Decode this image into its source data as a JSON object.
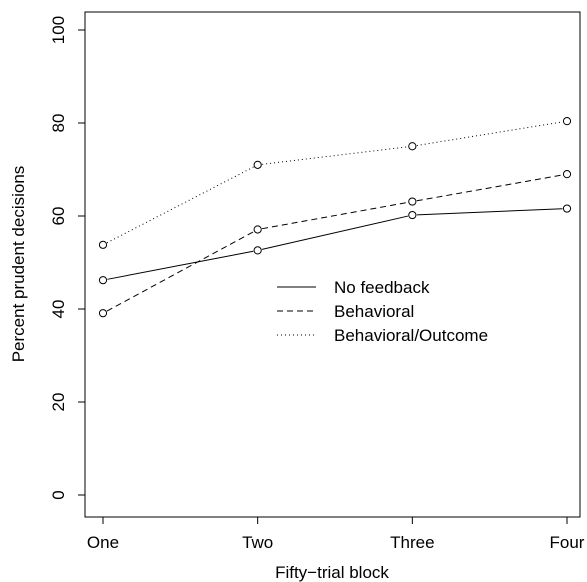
{
  "chart_data": {
    "type": "line",
    "xlabel": "Fifty−trial block",
    "ylabel": "Percent prudent decisions",
    "categories": [
      "One",
      "Two",
      "Three",
      "Four"
    ],
    "ylim": [
      0,
      100
    ],
    "yticks": [
      0,
      20,
      40,
      60,
      80,
      100
    ],
    "grid": false,
    "legend": "center-right",
    "series": [
      {
        "name": "No feedback",
        "line_style": "solid",
        "values": [
          46.2,
          52.6,
          60.2,
          61.6
        ]
      },
      {
        "name": "Behavioral",
        "line_style": "dashed",
        "values": [
          39.1,
          57.1,
          63.1,
          69.0
        ]
      },
      {
        "name": "Behavioral/Outcome",
        "line_style": "dotted",
        "values": [
          53.8,
          71.0,
          75.0,
          80.4
        ]
      }
    ],
    "colors": {
      "line": "#000000",
      "background": "#ffffff"
    }
  }
}
